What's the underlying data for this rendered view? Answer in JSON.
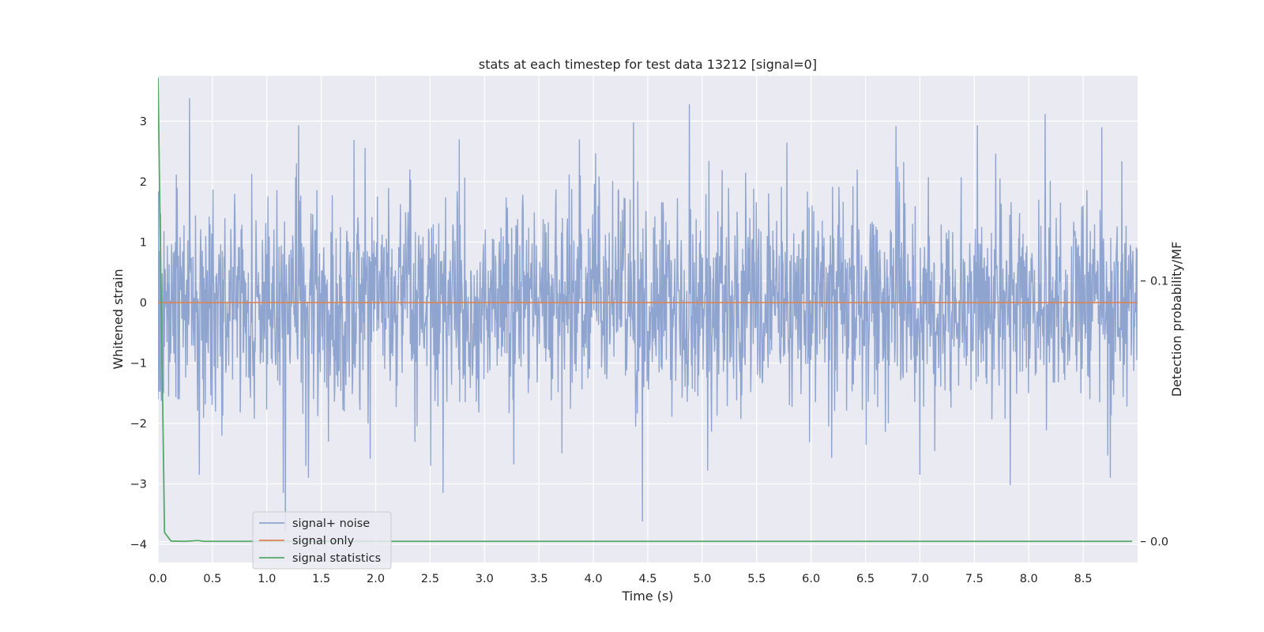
{
  "chart_data": {
    "type": "line",
    "title": "stats at each timestep for test data 13212 [signal=0]",
    "xlabel": "Time (s)",
    "ylabel": "Whitened strain",
    "y2label": "Detection probability/MF",
    "xlim": [
      0,
      9.0
    ],
    "ylim": [
      -4.3,
      3.75
    ],
    "y2lim": [
      -0.008,
      0.1787
    ],
    "xticks": [
      0.0,
      0.5,
      1.0,
      1.5,
      2.0,
      2.5,
      3.0,
      3.5,
      4.0,
      4.5,
      5.0,
      5.5,
      6.0,
      6.5,
      7.0,
      7.5,
      8.0,
      8.5
    ],
    "xtick_labels": [
      "0.0",
      "0.5",
      "1.0",
      "1.5",
      "2.0",
      "2.5",
      "3.0",
      "3.5",
      "4.0",
      "4.5",
      "5.0",
      "5.5",
      "6.0",
      "6.5",
      "7.0",
      "7.5",
      "8.0",
      "8.5"
    ],
    "yticks": [
      3,
      2,
      1,
      0,
      -1,
      -2,
      -3,
      -4
    ],
    "ytick_labels": [
      "3",
      "2",
      "1",
      "0",
      "−1",
      "−2",
      "−3",
      "−4"
    ],
    "y2ticks": [
      0.1,
      0.0
    ],
    "y2tick_labels": [
      "0.1",
      "0.0"
    ],
    "grid": true,
    "legend_position": "lower-left",
    "background": "#eaeaf2",
    "series": [
      {
        "name": "signal+ noise",
        "axis": "left",
        "color": "#8fa5cf",
        "noise_model": {
          "t_start": 0.0,
          "t_end": 9.0,
          "samples": 2300,
          "amplitude_sigma": 0.85
        },
        "peaks": [
          {
            "x": 0.29,
            "y": 3.38
          },
          {
            "x": 1.15,
            "y": -3.15
          },
          {
            "x": 1.17,
            "y": -3.8
          },
          {
            "x": 1.29,
            "y": 2.93
          },
          {
            "x": 1.38,
            "y": -2.9
          },
          {
            "x": 2.62,
            "y": -3.15
          },
          {
            "x": 4.37,
            "y": 2.98
          },
          {
            "x": 4.45,
            "y": -3.62
          },
          {
            "x": 4.88,
            "y": 3.28
          },
          {
            "x": 7.0,
            "y": -2.85
          },
          {
            "x": 7.83,
            "y": -3.02
          },
          {
            "x": 8.15,
            "y": 3.12
          },
          {
            "x": 8.67,
            "y": 2.9
          },
          {
            "x": 8.75,
            "y": -2.9
          },
          {
            "x": 6.78,
            "y": 2.92
          },
          {
            "x": 7.53,
            "y": 2.93
          },
          {
            "x": 0.0,
            "y": -1.6
          },
          {
            "x": 5.05,
            "y": -2.78
          },
          {
            "x": 3.27,
            "y": -2.68
          },
          {
            "x": 0.38,
            "y": -2.85
          }
        ]
      },
      {
        "name": "signal only",
        "axis": "left",
        "color": "#dd8452",
        "x": [
          0.0,
          9.0
        ],
        "y": [
          0.0,
          0.0
        ]
      },
      {
        "name": "signal statistics",
        "axis": "right",
        "color": "#55a868",
        "x": [
          0.0,
          0.06,
          0.12,
          0.25,
          0.37,
          0.42,
          0.6,
          1.0,
          2.0,
          4.0,
          6.0,
          8.0,
          8.95
        ],
        "y": [
          0.178,
          0.0035,
          0.0002,
          0.0001,
          0.0004,
          0.0001,
          0.0001,
          0.0001,
          0.0001,
          0.0001,
          0.0001,
          0.0001,
          0.0001
        ]
      }
    ]
  }
}
